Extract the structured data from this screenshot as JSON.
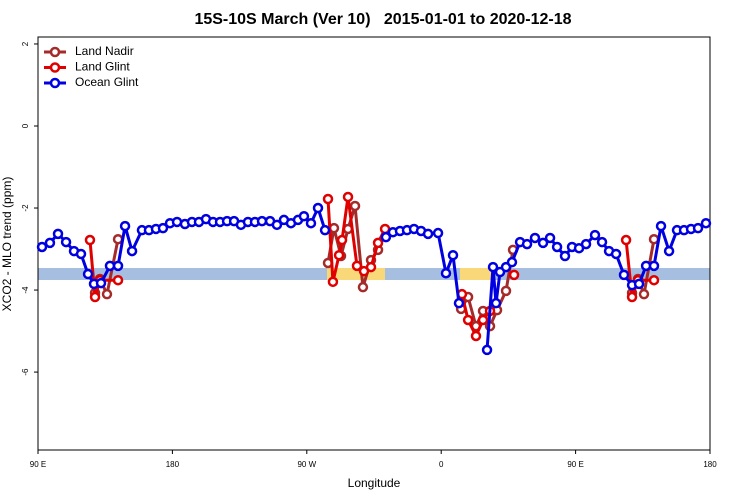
{
  "chart_data": {
    "type": "line",
    "title": "15S-10S March (Ver 10)   2015-01-01 to 2020-12-18",
    "x_label": "Longitude",
    "y_label": "XCO2 - MLO trend (ppm)",
    "xlim": [
      90,
      540
    ],
    "ylim": [
      -7.9,
      2.17
    ],
    "xticks": [
      {
        "value": 90,
        "label": "90 E"
      },
      180,
      {
        "value": 270,
        "label": "90 W"
      },
      {
        "value": 360,
        "label": "0"
      },
      {
        "value": 450,
        "label": "90 E"
      },
      {
        "value": 540,
        "label": "180"
      }
    ],
    "yticks": [
      -6,
      -4,
      -2,
      0,
      2
    ],
    "legend": "top-left",
    "series": [
      {
        "name": "Land Nadir",
        "color": "#a52a2a",
        "x": [
          128.2,
          131.5,
          136.2,
          143.6,
          null,
          284.2,
          288.2,
          292.9,
          297.6,
          302.3,
          307.6,
          313.0,
          317.7,
          null,
          373.3,
          378.0,
          383.3,
          388.0,
          392.7,
          397.4,
          403.4,
          408.1,
          null,
          487.8,
          491.8,
          495.8,
          502.5
        ],
        "values": [
          -4.07,
          -3.73,
          -4.1,
          -2.76,
          null,
          -3.34,
          -2.49,
          -3.17,
          -2.51,
          -1.95,
          -3.93,
          -3.27,
          -3.02,
          null,
          -4.46,
          -4.17,
          -4.88,
          -4.51,
          -4.88,
          -4.49,
          -4.02,
          -3.02,
          null,
          -4.07,
          -3.73,
          -4.1,
          -2.76
        ]
      },
      {
        "name": "Land Glint",
        "color": "#e00000",
        "x": [
          124.8,
          128.2,
          131.5,
          143.6,
          null,
          284.2,
          287.5,
          291.6,
          293.6,
          297.6,
          303.6,
          308.3,
          313.0,
          317.7,
          322.4,
          null,
          373.9,
          378.0,
          383.3,
          388.0,
          392.7,
          null,
          408.8,
          null,
          483.8,
          487.8,
          491.8,
          502.5
        ],
        "values": [
          -2.78,
          -4.17,
          -3.76,
          -3.76,
          null,
          -1.78,
          -3.8,
          -3.15,
          -2.78,
          -1.73,
          -3.41,
          -3.54,
          -3.44,
          -2.85,
          -2.51,
          null,
          -4.1,
          -4.73,
          -5.12,
          -4.73,
          -4.51,
          null,
          -3.63,
          null,
          -2.78,
          -4.17,
          -3.76,
          -3.76
        ]
      },
      {
        "name": "Ocean Glint",
        "color": "#0000e0",
        "x": [
          92.7,
          98.0,
          103.4,
          108.8,
          114.1,
          118.8,
          123.5,
          127.5,
          132.2,
          138.2,
          143.6,
          148.3,
          153.0,
          159.6,
          164.3,
          169.0,
          173.7,
          178.4,
          183.1,
          188.4,
          193.1,
          197.8,
          202.5,
          207.2,
          211.9,
          216.6,
          221.3,
          225.9,
          230.6,
          235.3,
          240.0,
          245.4,
          250.0,
          254.7,
          259.4,
          264.1,
          268.1,
          272.8,
          277.5,
          282.2,
          null,
          323.0,
          327.7,
          332.4,
          337.1,
          341.8,
          346.5,
          351.2,
          357.9,
          363.2,
          367.9,
          371.9,
          null,
          390.7,
          394.7,
          396.7,
          399.4,
          403.4,
          407.4,
          412.8,
          417.5,
          422.8,
          428.2,
          432.9,
          437.6,
          442.9,
          447.6,
          452.3,
          457.0,
          463.0,
          467.7,
          472.4,
          477.1,
          482.4,
          487.8,
          492.5,
          497.2,
          502.5,
          507.2,
          512.6,
          517.9,
          522.6,
          527.3,
          532.0,
          537.3
        ],
        "values": [
          -2.95,
          -2.85,
          -2.63,
          -2.83,
          -3.05,
          -3.12,
          -3.61,
          -3.85,
          -3.83,
          -3.41,
          -3.41,
          -2.44,
          -3.05,
          -2.54,
          -2.54,
          -2.51,
          -2.49,
          -2.37,
          -2.34,
          -2.39,
          -2.34,
          -2.34,
          -2.27,
          -2.34,
          -2.34,
          -2.32,
          -2.32,
          -2.41,
          -2.34,
          -2.34,
          -2.32,
          -2.32,
          -2.41,
          -2.29,
          -2.37,
          -2.29,
          -2.2,
          -2.37,
          -2.0,
          -2.54,
          null,
          -2.71,
          -2.59,
          -2.56,
          -2.54,
          -2.51,
          -2.56,
          -2.63,
          -2.61,
          -3.59,
          -3.15,
          -4.32,
          null,
          -5.46,
          -3.44,
          -4.32,
          -3.56,
          -3.44,
          -3.32,
          -2.83,
          -2.88,
          -2.73,
          -2.85,
          -2.73,
          -2.95,
          -3.17,
          -2.95,
          -2.98,
          -2.88,
          -2.66,
          -2.83,
          -3.05,
          -3.12,
          -3.63,
          -3.88,
          -3.85,
          -3.41,
          -3.41,
          -2.44,
          -3.05,
          -2.54,
          -2.54,
          -2.51,
          -2.49,
          -2.37
        ]
      }
    ]
  }
}
